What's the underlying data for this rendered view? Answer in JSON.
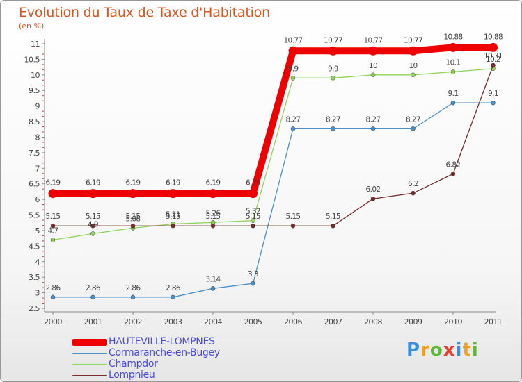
{
  "chart_data": {
    "type": "line",
    "title": "Evolution du Taux de Taxe d'Habitation",
    "ylabel": "(en %)",
    "xlabel": "",
    "x": [
      "2000",
      "2001",
      "2002",
      "2003",
      "2004",
      "2005",
      "2006",
      "2007",
      "2008",
      "2009",
      "2010",
      "2011"
    ],
    "yticks": [
      "2.5",
      "3",
      "3.5",
      "4",
      "4.5",
      "5",
      "5.5",
      "6",
      "6.5",
      "7",
      "7.5",
      "8",
      "8.5",
      "9",
      "9.5",
      "10",
      "10.5",
      "11"
    ],
    "ylim": [
      2.5,
      11
    ],
    "grid": false,
    "legend_position": "bottom-left",
    "series": [
      {
        "name": "HAUTEVILLE-LOMPNES",
        "color": "#ee0000",
        "values": [
          6.19,
          6.19,
          6.19,
          6.19,
          6.19,
          6.19,
          10.77,
          10.77,
          10.77,
          10.77,
          10.88,
          10.88
        ],
        "labels": [
          "6.19",
          "6.19",
          "6.19",
          "6.19",
          "6.19",
          "6.19",
          "10.77",
          "10.77",
          "10.77",
          "10.77",
          "10.88",
          "10.88"
        ]
      },
      {
        "name": "Cormaranche-en-Bugey",
        "color": "#4d8fc7",
        "values": [
          2.86,
          2.86,
          2.86,
          2.86,
          3.14,
          3.3,
          8.27,
          8.27,
          8.27,
          8.27,
          9.1,
          9.1
        ],
        "labels": [
          "2.86",
          "2.86",
          "2.86",
          "2.86",
          "3.14",
          "3.3",
          "8.27",
          "8.27",
          "8.27",
          "8.27",
          "9.1",
          "9.1"
        ]
      },
      {
        "name": "Champdor",
        "color": "#8fd35a",
        "values": [
          4.7,
          4.9,
          5.08,
          5.21,
          5.26,
          5.32,
          9.9,
          9.9,
          10,
          10,
          10.1,
          10.2
        ],
        "labels": [
          "4.7",
          "4.9",
          "5.08",
          "5.21",
          "5.26",
          "5.32",
          "9.9",
          "9.9",
          "10",
          "10",
          "10.1",
          "10.2"
        ]
      },
      {
        "name": "Lompnieu",
        "color": "#7a2a2a",
        "values": [
          5.15,
          5.15,
          5.15,
          5.15,
          5.15,
          5.15,
          5.15,
          5.15,
          6.02,
          6.2,
          6.82,
          10.31
        ],
        "labels": [
          "5.15",
          "5.15",
          "5.15",
          "5.15",
          "5.15",
          "5.15",
          "5.15",
          "5.15",
          "6.02",
          "6.2",
          "6.82",
          "10.31"
        ]
      }
    ]
  },
  "brand": {
    "letters": [
      "P",
      "r",
      "o",
      "x",
      "i",
      "t",
      "i"
    ],
    "colors": [
      "#3a8fd8",
      "#f0a020",
      "#60b838",
      "#e84030",
      "#3a8fd8",
      "#f0a020",
      "#60b838"
    ]
  }
}
